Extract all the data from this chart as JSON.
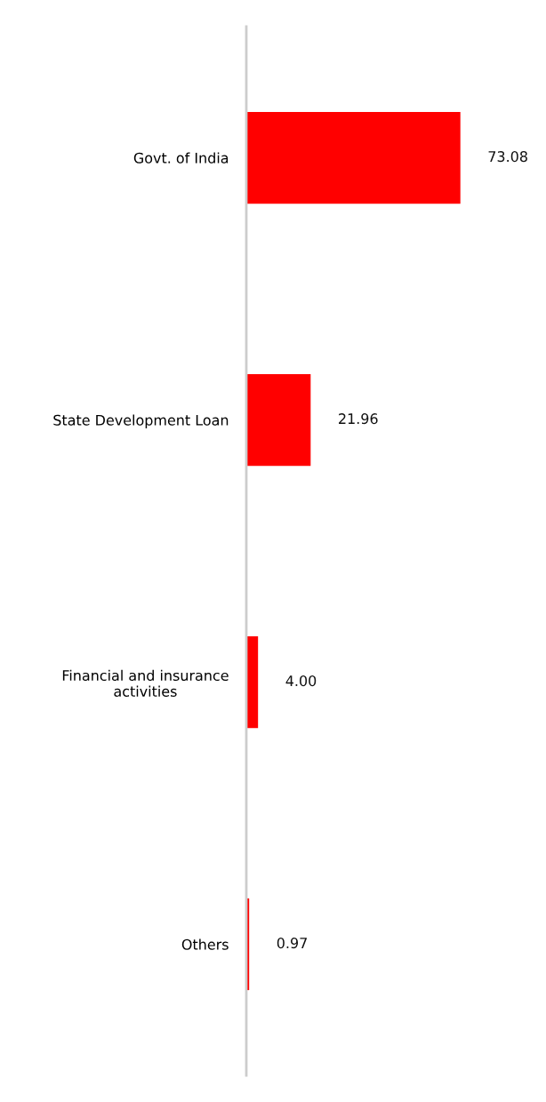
{
  "chart_data": {
    "type": "bar",
    "orientation": "horizontal",
    "categories": [
      "Govt. of India",
      "State Development Loan",
      "Financial and insurance\nactivities",
      "Others"
    ],
    "values": [
      73.08,
      21.96,
      4.0,
      0.97
    ],
    "value_labels": [
      "73.08",
      "21.96",
      "4.00",
      "0.97"
    ],
    "color": "#ff0000",
    "grid": false,
    "legend": false
  }
}
